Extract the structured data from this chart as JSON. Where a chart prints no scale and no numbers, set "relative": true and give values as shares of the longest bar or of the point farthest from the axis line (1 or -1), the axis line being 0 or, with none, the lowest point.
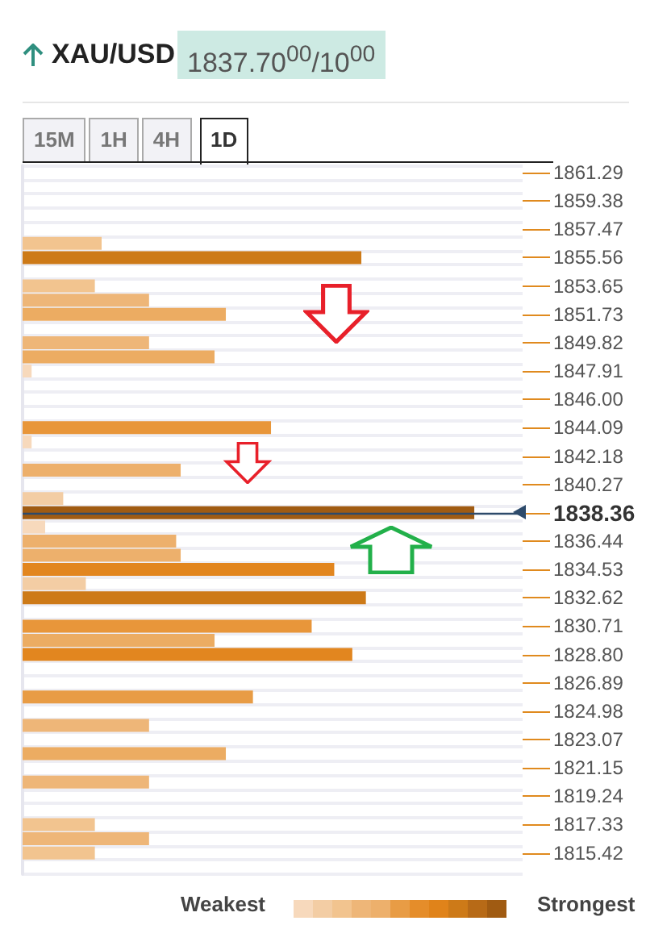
{
  "chart_data": {
    "type": "bar",
    "orientation": "horizontal",
    "relative": true,
    "grid": "y",
    "title": "XAU/USD",
    "subtitle": "1837.70$^{00}$/10$^{00}$",
    "annotations": [
      "15M",
      "1H",
      "4H",
      "1D",
      "Weakest",
      "Strongest"
    ],
    "categories": [
      "1861.29",
      null,
      "1859.38",
      null,
      "1857.47",
      null,
      "1855.56",
      null,
      "1853.65",
      null,
      "1851.73",
      null,
      "1849.82",
      null,
      "1847.91",
      null,
      "1846.00",
      null,
      "1844.09",
      null,
      "1842.18",
      null,
      "1840.27",
      null,
      "1838.36",
      null,
      "1836.44",
      null,
      "1834.53",
      null,
      "1832.62",
      null,
      "1830.71",
      null,
      "1828.80",
      null,
      "1826.89",
      null,
      "1824.98",
      null,
      "1823.07",
      null,
      "1821.15",
      null,
      "1819.24",
      null,
      "1817.33",
      null,
      "1815.42",
      null
    ],
    "values": [
      null,
      null,
      null,
      null,
      null,
      0.175,
      0.75,
      null,
      0.16,
      0.28,
      0.45,
      null,
      0.28,
      0.425,
      0.02,
      null,
      null,
      null,
      0.55,
      0.02,
      null,
      0.35,
      null,
      0.09,
      1,
      0.05,
      0.34,
      0.35,
      0.69,
      0.14,
      0.76,
      null,
      0.64,
      0.425,
      0.73,
      null,
      null,
      0.51,
      null,
      0.28,
      null,
      0.45,
      null,
      0.28,
      null,
      null,
      0.16,
      0.28,
      0.16,
      null
    ],
    "colors": [
      null,
      null,
      null,
      null,
      null,
      "#f2c48f",
      "#cd7a18",
      null,
      "#f2c48f",
      "#eeb678",
      "#ecac62",
      null,
      "#eeb678",
      "#ecac62",
      "#f7d9bc",
      null,
      null,
      null,
      "#e8963a",
      "#f7d9bc",
      null,
      "#edb06c",
      null,
      "#f3cda4",
      "#a05b12",
      "#f7d9bc",
      "#edb06c",
      "#edb06c",
      "#e2861f",
      "#f3cda4",
      "#cd7a18",
      null,
      "#e8963a",
      "#ecac62",
      "#e2861f",
      null,
      null,
      "#e89c45",
      null,
      "#eeb678",
      null,
      "#ecac62",
      null,
      "#eeb678",
      null,
      null,
      "#f2c48f",
      "#eeb678",
      "#f2c48f",
      null
    ],
    "ref_lines": [
      {
        "axis": "y",
        "value": "1838.36",
        "color": "#2d4a6b"
      }
    ]
  }
}
